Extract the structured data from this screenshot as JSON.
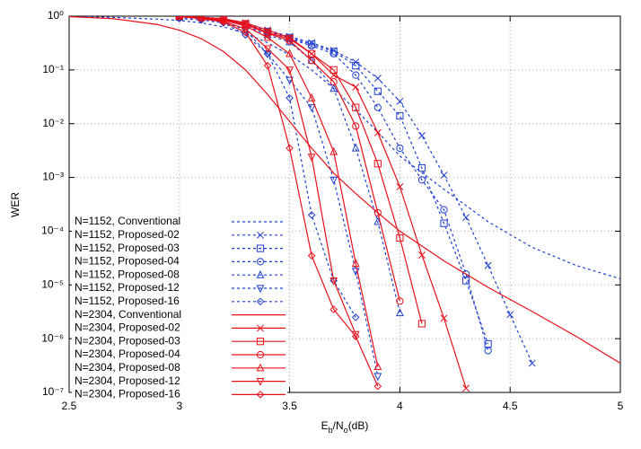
{
  "chart_data": {
    "type": "line",
    "log_y": true,
    "grid": true,
    "xlabel": [
      "E",
      "b",
      "/N",
      "o",
      "(dB)"
    ],
    "ylabel": "WER",
    "xlim": [
      2.5,
      5
    ],
    "xticks": [
      2.5,
      3,
      3.5,
      4,
      4.5,
      5
    ],
    "ylim": [
      1e-07,
      1
    ],
    "yticks": [
      {
        "value": 1,
        "label": "10⁰"
      },
      {
        "value": 0.1,
        "label": "10⁻¹"
      },
      {
        "value": 0.01,
        "label": "10⁻²"
      },
      {
        "value": 0.001,
        "label": "10⁻³"
      },
      {
        "value": 0.0001,
        "label": "10⁻⁴"
      },
      {
        "value": 1e-05,
        "label": "10⁻⁵"
      },
      {
        "value": 1e-06,
        "label": "10⁻⁶"
      },
      {
        "value": 1e-07,
        "label": "10⁻⁷"
      }
    ],
    "legend": "lower left",
    "series": [
      {
        "name": "N=1152, Conventional",
        "color": "#1f3fd0",
        "dashed": true,
        "marker": "none",
        "x": [
          2.5,
          2.7,
          2.9,
          3.0,
          3.1,
          3.2,
          3.3,
          3.4,
          3.5,
          3.6,
          3.7,
          3.8,
          3.9,
          4.0,
          4.2,
          4.4,
          4.6,
          4.8,
          5.0
        ],
        "values": [
          0.99,
          0.95,
          0.88,
          0.83,
          0.75,
          0.63,
          0.48,
          0.32,
          0.19,
          0.1,
          0.045,
          0.018,
          0.007,
          0.0025,
          0.0006,
          0.00015,
          5e-05,
          2.3e-05,
          1.3e-05
        ]
      },
      {
        "name": "N=1152, Proposed-02",
        "color": "#1f3fd0",
        "dashed": true,
        "marker": "x",
        "x": [
          3.0,
          3.1,
          3.2,
          3.3,
          3.4,
          3.5,
          3.6,
          3.7,
          3.8,
          3.9,
          4.0,
          4.1,
          4.2,
          4.3,
          4.4,
          4.5,
          4.6
        ],
        "values": [
          0.98,
          0.96,
          0.9,
          0.75,
          0.55,
          0.42,
          0.32,
          0.23,
          0.14,
          0.07,
          0.026,
          0.006,
          0.0011,
          0.00018,
          2.3e-05,
          2.8e-06,
          3.5e-07
        ]
      },
      {
        "name": "N=1152, Proposed-03",
        "color": "#1f3fd0",
        "dashed": true,
        "marker": "square",
        "x": [
          3.0,
          3.1,
          3.2,
          3.3,
          3.4,
          3.5,
          3.6,
          3.7,
          3.8,
          3.9,
          4.0,
          4.1,
          4.2,
          4.3,
          4.4
        ],
        "values": [
          0.97,
          0.95,
          0.88,
          0.72,
          0.52,
          0.4,
          0.3,
          0.22,
          0.12,
          0.04,
          0.014,
          0.0015,
          0.00014,
          1.2e-05,
          8e-07
        ]
      },
      {
        "name": "N=1152, Proposed-04",
        "color": "#1f3fd0",
        "dashed": true,
        "marker": "circle",
        "x": [
          3.0,
          3.1,
          3.2,
          3.3,
          3.4,
          3.5,
          3.6,
          3.7,
          3.8,
          3.9,
          4.0,
          4.1,
          4.2,
          4.3,
          4.4
        ],
        "values": [
          0.97,
          0.94,
          0.86,
          0.7,
          0.5,
          0.38,
          0.28,
          0.2,
          0.08,
          0.02,
          0.0035,
          0.0009,
          0.00025,
          1.6e-05,
          6e-07
        ]
      },
      {
        "name": "N=1152, Proposed-08",
        "color": "#1f3fd0",
        "dashed": true,
        "marker": "triangle",
        "x": [
          3.0,
          3.1,
          3.2,
          3.3,
          3.4,
          3.5,
          3.6,
          3.7,
          3.8,
          3.9,
          4.0
        ],
        "values": [
          0.96,
          0.93,
          0.84,
          0.66,
          0.45,
          0.33,
          0.15,
          0.045,
          0.0035,
          0.00015,
          3e-06
        ]
      },
      {
        "name": "N=1152, Proposed-12",
        "color": "#1f3fd0",
        "dashed": true,
        "marker": "triangle-down",
        "x": [
          3.0,
          3.1,
          3.2,
          3.3,
          3.4,
          3.5,
          3.6,
          3.7,
          3.8,
          3.9
        ],
        "values": [
          0.95,
          0.9,
          0.8,
          0.55,
          0.2,
          0.065,
          0.02,
          0.0009,
          1.8e-05,
          2e-07
        ]
      },
      {
        "name": "N=1152, Proposed-16",
        "color": "#1f3fd0",
        "dashed": true,
        "marker": "diamond",
        "x": [
          3.0,
          3.1,
          3.2,
          3.3,
          3.4,
          3.5,
          3.6,
          3.7,
          3.8
        ],
        "values": [
          0.9,
          0.85,
          0.75,
          0.45,
          0.2,
          0.03,
          0.0002,
          1.2e-05,
          2.5e-06
        ]
      },
      {
        "name": "N=2304, Conventional",
        "color": "#e8101a",
        "dashed": false,
        "marker": "none",
        "x": [
          2.5,
          2.7,
          2.9,
          3.0,
          3.1,
          3.2,
          3.3,
          3.4,
          3.5,
          3.6,
          3.7,
          3.8,
          3.9,
          4.0,
          4.2,
          4.4,
          4.6,
          4.8,
          5.0
        ],
        "values": [
          0.98,
          0.9,
          0.7,
          0.55,
          0.38,
          0.22,
          0.1,
          0.035,
          0.011,
          0.0035,
          0.0012,
          0.0005,
          0.00022,
          0.0001,
          2.8e-05,
          9e-06,
          3.2e-06,
          1.1e-06,
          3.5e-07
        ]
      },
      {
        "name": "N=2304, Proposed-02",
        "color": "#e8101a",
        "dashed": false,
        "marker": "x",
        "x": [
          3.0,
          3.1,
          3.2,
          3.3,
          3.4,
          3.5,
          3.6,
          3.7,
          3.8,
          3.9,
          4.0,
          4.1,
          4.2,
          4.3
        ],
        "values": [
          1,
          0.95,
          0.9,
          0.75,
          0.55,
          0.4,
          0.2,
          0.08,
          0.048,
          0.0068,
          0.00067,
          3.6e-05,
          2.4e-06,
          1.2e-07
        ]
      },
      {
        "name": "N=2304, Proposed-03",
        "color": "#e8101a",
        "dashed": false,
        "marker": "square",
        "x": [
          3.0,
          3.1,
          3.2,
          3.3,
          3.4,
          3.5,
          3.6,
          3.7,
          3.8,
          3.9,
          4.0,
          4.1
        ],
        "values": [
          1,
          0.95,
          0.88,
          0.72,
          0.5,
          0.38,
          0.2,
          0.1,
          0.02,
          0.0018,
          7.5e-05,
          1.9e-06
        ]
      },
      {
        "name": "N=2304, Proposed-04",
        "color": "#e8101a",
        "dashed": false,
        "marker": "circle",
        "x": [
          3.0,
          3.1,
          3.2,
          3.3,
          3.4,
          3.5,
          3.6,
          3.7,
          3.8,
          3.9,
          4.0
        ],
        "values": [
          1,
          0.94,
          0.86,
          0.7,
          0.48,
          0.35,
          0.15,
          0.06,
          0.009,
          0.00022,
          5e-06
        ]
      },
      {
        "name": "N=2304, Proposed-08",
        "color": "#e8101a",
        "dashed": false,
        "marker": "triangle",
        "x": [
          3.0,
          3.1,
          3.2,
          3.3,
          3.4,
          3.5,
          3.6,
          3.7,
          3.8,
          3.9
        ],
        "values": [
          1,
          0.93,
          0.84,
          0.66,
          0.4,
          0.2,
          0.03,
          0.003,
          2.5e-05,
          3e-07
        ]
      },
      {
        "name": "N=2304, Proposed-12",
        "color": "#e8101a",
        "dashed": false,
        "marker": "triangle-down",
        "x": [
          3.0,
          3.1,
          3.2,
          3.3,
          3.4,
          3.5,
          3.6,
          3.7,
          3.8
        ],
        "values": [
          1,
          0.92,
          0.8,
          0.58,
          0.25,
          0.1,
          0.0024,
          1.2e-05,
          1.2e-06
        ]
      },
      {
        "name": "N=2304, Proposed-16",
        "color": "#e8101a",
        "dashed": false,
        "marker": "diamond",
        "x": [
          3.0,
          3.1,
          3.2,
          3.3,
          3.4,
          3.5,
          3.6,
          3.7,
          3.8,
          3.9
        ],
        "values": [
          0.98,
          0.9,
          0.78,
          0.5,
          0.12,
          0.0035,
          3.5e-05,
          3.5e-06,
          1.1e-06,
          1.3e-07
        ]
      }
    ]
  }
}
